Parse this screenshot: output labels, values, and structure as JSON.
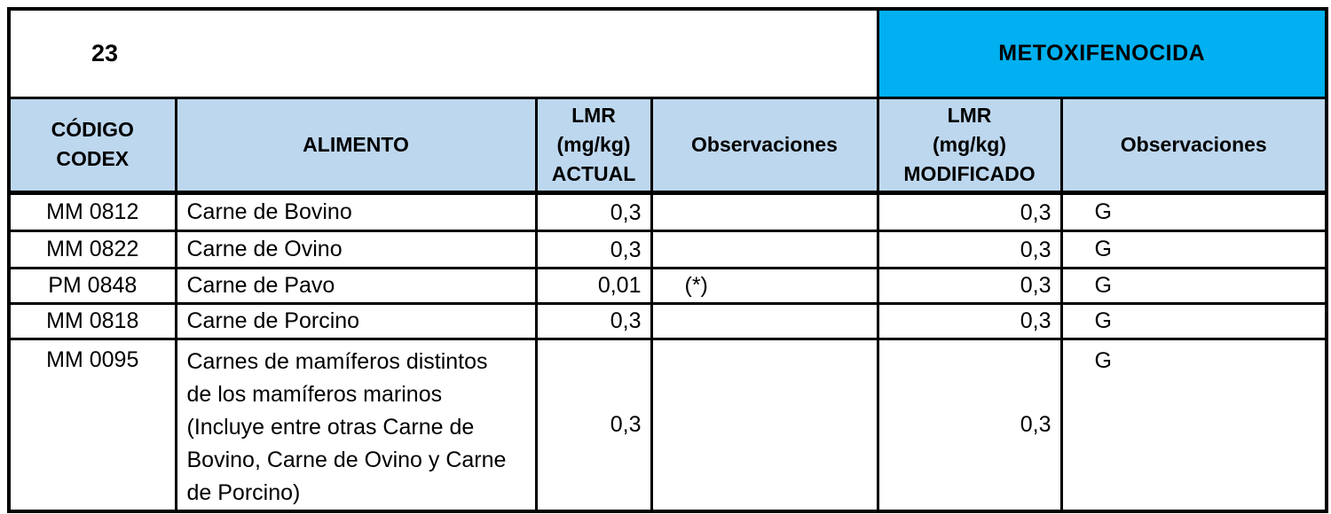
{
  "page": {
    "sheet_number": "23",
    "substance": "METOXIFENOCIDA"
  },
  "table": {
    "columns": [
      {
        "id": "codigo_codex",
        "label": "CÓDIGO\nCODEX"
      },
      {
        "id": "alimento",
        "label": "ALIMENTO"
      },
      {
        "id": "lmr_actual",
        "label": "LMR\n(mg/kg)\nACTUAL"
      },
      {
        "id": "obs_actual",
        "label": "Observaciones"
      },
      {
        "id": "lmr_modificado",
        "label": "LMR\n(mg/kg)\nMODIFICADO"
      },
      {
        "id": "obs_modificado",
        "label": "Observaciones"
      }
    ],
    "rows": [
      {
        "code": "MM 0812",
        "food": "Carne de Bovino",
        "lmr_actual": "0,3",
        "obs_actual": "",
        "lmr_modificado": "0,3",
        "obs_modificado": "G",
        "tall": false
      },
      {
        "code": "MM 0822",
        "food": "Carne de Ovino",
        "lmr_actual": "0,3",
        "obs_actual": "",
        "lmr_modificado": "0,3",
        "obs_modificado": "G",
        "tall": false
      },
      {
        "code": "PM 0848",
        "food": "Carne de Pavo",
        "lmr_actual": "0,01",
        "obs_actual": "(*)",
        "lmr_modificado": "0,3",
        "obs_modificado": "G",
        "tall": false
      },
      {
        "code": "MM 0818",
        "food": "Carne de Porcino",
        "lmr_actual": "0,3",
        "obs_actual": "",
        "lmr_modificado": "0,3",
        "obs_modificado": "G",
        "tall": false
      },
      {
        "code": "MM 0095",
        "food": "Carnes de mamíferos distintos\nde los mamíferos marinos\n(Incluye entre otras Carne de\nBovino, Carne de Ovino y Carne\nde Porcino)",
        "lmr_actual": "0,3",
        "obs_actual": "",
        "lmr_modificado": "0,3",
        "obs_modificado": "G",
        "tall": true
      }
    ]
  },
  "colors": {
    "substance_banner": "#00B0F0",
    "header_bg": "#BDD7EE",
    "border": "#000000",
    "background": "#FFFFFF"
  }
}
